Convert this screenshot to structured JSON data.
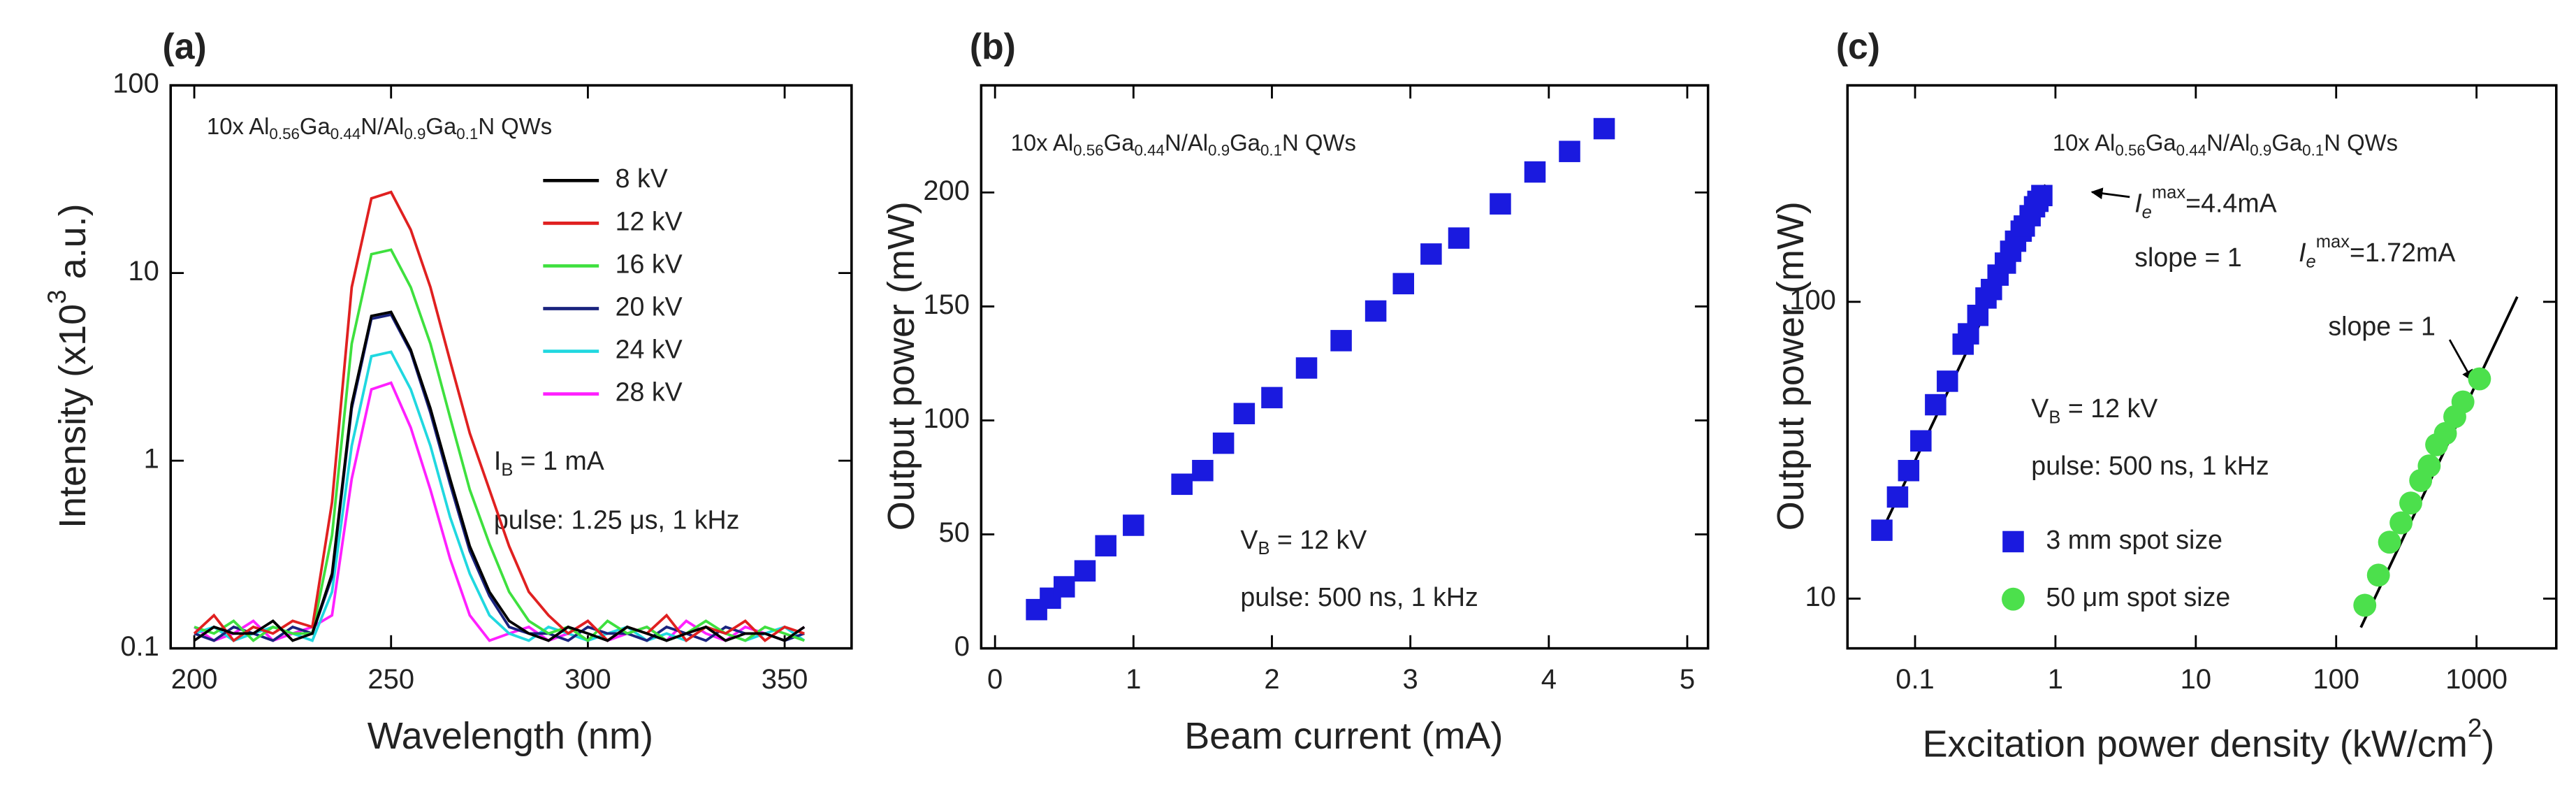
{
  "chart_data": [
    {
      "type": "line",
      "panel_label": "(a)",
      "annotation": [
        "10x Al",
        "0.56",
        "Ga",
        "0.44",
        "N/Al",
        "0.9",
        "Ga",
        "0.1",
        "N QWs"
      ],
      "current_note": [
        "I",
        "B",
        " = 1 mA"
      ],
      "pulse_note": "pulse: 1.25 μs, 1 kHz",
      "xlabel": "Wavelength (nm)",
      "ylabel": [
        "Intensity (x10",
        "3",
        " a.u.)"
      ],
      "xlim": [
        194,
        367
      ],
      "xticks": [
        200,
        250,
        300,
        350
      ],
      "ylim": [
        0.1,
        100
      ],
      "yticks": [
        0.1,
        1,
        10,
        100
      ],
      "yscale": "log",
      "legend": "upper right",
      "x": [
        200,
        205,
        210,
        215,
        220,
        225,
        230,
        235,
        240,
        245,
        250,
        255,
        260,
        265,
        270,
        275,
        280,
        285,
        290,
        295,
        300,
        305,
        310,
        315,
        320,
        325,
        330,
        335,
        340,
        345,
        350,
        355
      ],
      "series": [
        {
          "name": "8 kV",
          "color": "#000000",
          "values": [
            0.11,
            0.13,
            0.12,
            0.12,
            0.14,
            0.11,
            0.12,
            0.25,
            2,
            5.9,
            6.2,
            3.9,
            1.9,
            0.8,
            0.35,
            0.2,
            0.14,
            0.12,
            0.11,
            0.13,
            0.12,
            0.11,
            0.13,
            0.12,
            0.11,
            0.12,
            0.13,
            0.11,
            0.12,
            0.12,
            0.11,
            0.13
          ]
        },
        {
          "name": "12 kV",
          "color": "#e02020",
          "values": [
            0.12,
            0.15,
            0.11,
            0.13,
            0.12,
            0.14,
            0.13,
            0.6,
            8.4,
            25,
            27,
            17,
            8.4,
            3.4,
            1.4,
            0.7,
            0.35,
            0.2,
            0.15,
            0.12,
            0.14,
            0.11,
            0.13,
            0.12,
            0.15,
            0.11,
            0.13,
            0.12,
            0.14,
            0.11,
            0.13,
            0.12
          ]
        },
        {
          "name": "16 kV",
          "color": "#3ee03e",
          "values": [
            0.13,
            0.12,
            0.14,
            0.11,
            0.13,
            0.12,
            0.12,
            0.4,
            4.2,
            12.6,
            13.3,
            8.4,
            4.2,
            1.7,
            0.7,
            0.36,
            0.2,
            0.14,
            0.12,
            0.13,
            0.11,
            0.14,
            0.12,
            0.13,
            0.11,
            0.12,
            0.14,
            0.12,
            0.11,
            0.13,
            0.12,
            0.11
          ]
        },
        {
          "name": "20 kV",
          "color": "#1a237e",
          "values": [
            0.12,
            0.11,
            0.13,
            0.12,
            0.11,
            0.13,
            0.12,
            0.24,
            1.9,
            5.7,
            6.0,
            3.8,
            1.8,
            0.75,
            0.33,
            0.19,
            0.13,
            0.12,
            0.12,
            0.11,
            0.13,
            0.12,
            0.12,
            0.11,
            0.13,
            0.12,
            0.11,
            0.13,
            0.12,
            0.12,
            0.11,
            0.12
          ]
        },
        {
          "name": "24 kV",
          "color": "#20d8e0",
          "values": [
            0.12,
            0.13,
            0.11,
            0.12,
            0.13,
            0.12,
            0.11,
            0.2,
            1.2,
            3.6,
            3.8,
            2.4,
            1.2,
            0.5,
            0.25,
            0.15,
            0.12,
            0.11,
            0.13,
            0.12,
            0.11,
            0.12,
            0.13,
            0.11,
            0.12,
            0.11,
            0.13,
            0.12,
            0.11,
            0.12,
            0.13,
            0.11
          ]
        },
        {
          "name": "28 kV",
          "color": "#ff20ff",
          "values": [
            0.13,
            0.11,
            0.12,
            0.14,
            0.11,
            0.12,
            0.13,
            0.15,
            0.8,
            2.4,
            2.6,
            1.5,
            0.7,
            0.3,
            0.15,
            0.11,
            0.12,
            0.13,
            0.11,
            0.12,
            0.14,
            0.11,
            0.12,
            0.13,
            0.11,
            0.14,
            0.12,
            0.11,
            0.13,
            0.12,
            0.11,
            0.13
          ]
        }
      ]
    },
    {
      "type": "scatter",
      "panel_label": "(b)",
      "annotation": [
        "10x Al",
        "0.56",
        "Ga",
        "0.44",
        "N/Al",
        "0.9",
        "Ga",
        "0.1",
        "N QWs"
      ],
      "voltage_note": [
        "V",
        "B",
        " = 12 kV"
      ],
      "pulse_note": "pulse: 500 ns, 1 kHz",
      "xlabel": "Beam current (mA)",
      "ylabel": "Output power (mW)",
      "xlim": [
        -0.1,
        5.15
      ],
      "xticks": [
        0,
        1,
        2,
        3,
        4,
        5
      ],
      "ylim": [
        0,
        247
      ],
      "yticks": [
        0,
        50,
        100,
        150,
        200
      ],
      "color": "#1a1adf",
      "marker": "square",
      "x": [
        0.3,
        0.4,
        0.5,
        0.65,
        0.8,
        1.0,
        1.35,
        1.5,
        1.65,
        1.8,
        2.0,
        2.25,
        2.5,
        2.75,
        2.95,
        3.15,
        3.35,
        3.65,
        3.9,
        4.15,
        4.4
      ],
      "values": [
        17,
        22,
        27,
        34,
        45,
        54,
        72,
        78,
        90,
        103,
        110,
        123,
        135,
        148,
        160,
        173,
        180,
        195,
        209,
        218,
        228
      ]
    },
    {
      "type": "scatter",
      "panel_label": "(c)",
      "annotation": [
        "10x Al",
        "0.56",
        "Ga",
        "0.44",
        "N/Al",
        "0.9",
        "Ga",
        "0.1",
        "N QWs"
      ],
      "current_note_1": [
        "I",
        "e",
        "max",
        "=4.4mA"
      ],
      "current_note_2": [
        "I",
        "e",
        "max",
        "=1.72mA"
      ],
      "slope_note_1": "slope = 1",
      "slope_note_2": "slope = 1",
      "voltage_note": [
        "V",
        "B",
        " = 12 kV"
      ],
      "pulse_note": "pulse: 500 ns, 1 kHz",
      "xlabel": [
        "Excitation power density (kW/cm",
        "2",
        ")"
      ],
      "ylabel": "Output power (mW)",
      "xlim": [
        0.033,
        3700
      ],
      "xticks": [
        0.1,
        1,
        10,
        100,
        1000
      ],
      "xscale": "log",
      "ylim": [
        6.8,
        536
      ],
      "yticks": [
        10,
        100
      ],
      "yscale": "log",
      "legend": "lower center",
      "series": [
        {
          "name": "3 mm spot size",
          "color": "#1a1adf",
          "marker": "square",
          "x": [
            0.058,
            0.075,
            0.09,
            0.11,
            0.14,
            0.17,
            0.22,
            0.24,
            0.28,
            0.32,
            0.35,
            0.39,
            0.44,
            0.48,
            0.52,
            0.57,
            0.6,
            0.66,
            0.71,
            0.75,
            0.8
          ],
          "values": [
            17,
            22,
            27,
            34,
            45,
            54,
            72,
            78,
            90,
            103,
            110,
            123,
            135,
            148,
            160,
            173,
            180,
            195,
            209,
            218,
            228
          ]
        },
        {
          "name": "50 μm spot size",
          "color": "#4ce04c",
          "marker": "circle",
          "x": [
            160,
            200,
            240,
            290,
            340,
            400,
            460,
            520,
            600,
            700,
            800,
            1050
          ],
          "values": [
            9.5,
            12,
            15.5,
            18,
            21,
            25,
            28,
            33,
            36,
            41,
            46,
            55
          ]
        }
      ],
      "fit_lines": [
        {
          "color": "#000000",
          "x": [
            0.055,
            0.85
          ],
          "values": [
            16,
            248
          ]
        },
        {
          "color": "#000000",
          "x": [
            150,
            1950
          ],
          "values": [
            8,
            104
          ]
        }
      ]
    }
  ]
}
